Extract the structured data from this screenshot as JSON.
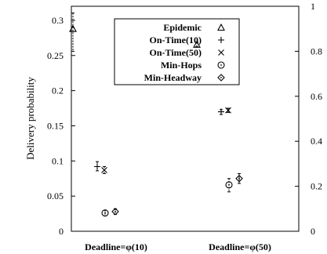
{
  "chart_data": {
    "type": "scatter",
    "ylabel": "Delivery probability",
    "ylim": [
      0,
      0.32
    ],
    "yticks": [
      0,
      0.05,
      0.1,
      0.15,
      0.2,
      0.25,
      0.3
    ],
    "ytick_labels": [
      "0",
      "0.05",
      "0.1",
      "0.15",
      "0.2",
      "0.25",
      "0.3"
    ],
    "y2lim": [
      0,
      1
    ],
    "y2ticks": [
      0,
      0.2,
      0.4,
      0.6,
      0.8,
      1
    ],
    "y2tick_labels": [
      "0",
      "0.2",
      "0.4",
      "0.6",
      "0.8",
      "1"
    ],
    "categories": [
      "Deadline=φ(10)",
      "Deadline=φ(50)"
    ],
    "legend_position": "top-center",
    "grid": false,
    "series": [
      {
        "name": "Epidemic",
        "marker": "triangle",
        "axis": "right",
        "values": [
          0.9,
          0.83
        ],
        "err_low": [
          0.8,
          0.82
        ],
        "err_high": [
          0.97,
          0.84
        ]
      },
      {
        "name": "On-Time(10)",
        "marker": "plus",
        "axis": "left",
        "values": [
          0.092,
          0.17
        ],
        "err_low": [
          0.086,
          0.166
        ],
        "err_high": [
          0.099,
          0.173
        ]
      },
      {
        "name": "On-Time(50)",
        "marker": "cross",
        "axis": "left",
        "values": [
          0.087,
          0.172
        ],
        "err_low": [
          0.082,
          0.169
        ],
        "err_high": [
          0.092,
          0.175
        ]
      },
      {
        "name": "Min-Hops",
        "marker": "circle",
        "axis": "left",
        "values": [
          0.026,
          0.066
        ],
        "err_low": [
          0.022,
          0.056
        ],
        "err_high": [
          0.03,
          0.075
        ]
      },
      {
        "name": "Min-Headway",
        "marker": "diamond",
        "axis": "left",
        "values": [
          0.028,
          0.075
        ],
        "err_low": [
          0.024,
          0.068
        ],
        "err_high": [
          0.032,
          0.082
        ]
      }
    ]
  }
}
